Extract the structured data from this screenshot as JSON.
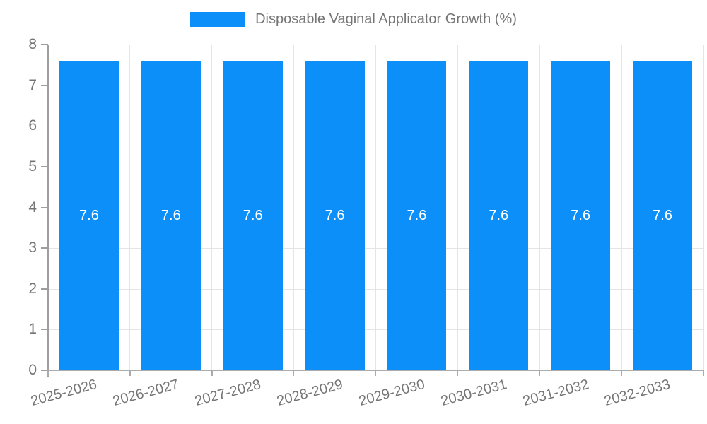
{
  "chart_data": {
    "type": "bar",
    "title": "Disposable Vaginal Applicator Growth (%)",
    "categories": [
      "2025-2026",
      "2026-2027",
      "2027-2028",
      "2028-2029",
      "2029-2030",
      "2030-2031",
      "2031-2032",
      "2032-2033"
    ],
    "values": [
      7.6,
      7.6,
      7.6,
      7.6,
      7.6,
      7.6,
      7.6,
      7.6
    ],
    "bar_labels": [
      "7.6",
      "7.6",
      "7.6",
      "7.6",
      "7.6",
      "7.6",
      "7.6",
      "7.6"
    ],
    "xlabel": "",
    "ylabel": "",
    "ylim": [
      0,
      8
    ],
    "yticks": [
      0,
      1,
      2,
      3,
      4,
      5,
      6,
      7,
      8
    ],
    "grid": true,
    "legend_position": "top",
    "colors": {
      "bar": "#0d8ff9",
      "bar_label": "#ffffff",
      "axis_text": "#757575",
      "grid_line": "#e5e5e5",
      "axis_line": "#9e9e9e"
    }
  }
}
